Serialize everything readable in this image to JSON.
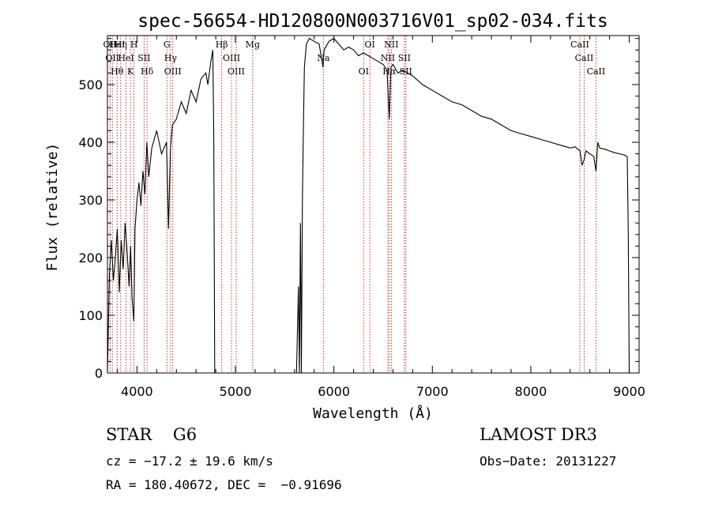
{
  "chart_data": {
    "type": "line",
    "title": "spec-56654-HD120800N003716V01_sp02-034.fits",
    "xlabel": "Wavelength (Å)",
    "ylabel": "Flux (relative)",
    "xlim": [
      3700,
      9100
    ],
    "ylim": [
      0,
      585
    ],
    "xticks": [
      4000,
      5000,
      6000,
      7000,
      8000,
      9000
    ],
    "yticks": [
      0,
      100,
      200,
      300,
      400,
      500
    ],
    "grid": false,
    "series": [
      {
        "x": [
          3700,
          3720,
          3740,
          3760,
          3780,
          3800,
          3820,
          3840,
          3860,
          3880,
          3900,
          3920,
          3935,
          3950,
          3968,
          3980,
          4000,
          4020,
          4040,
          4060,
          4080,
          4100,
          4120,
          4150,
          4200,
          4250,
          4300,
          4320,
          4340,
          4360,
          4400,
          4450,
          4500,
          4550,
          4600,
          4650,
          4700,
          4720,
          4750,
          4770,
          4780,
          4790,
          4800,
          5600,
          5620,
          5640,
          5650,
          5660,
          5670,
          5680,
          5690,
          5700,
          5720,
          5750,
          5800,
          5850,
          5890,
          5900,
          5950,
          6000,
          6050,
          6100,
          6150,
          6200,
          6250,
          6300,
          6350,
          6400,
          6450,
          6500,
          6540,
          6563,
          6580,
          6600,
          6650,
          6700,
          6750,
          6800,
          6900,
          7000,
          7100,
          7200,
          7300,
          7400,
          7500,
          7600,
          7700,
          7800,
          7900,
          8000,
          8100,
          8200,
          8300,
          8400,
          8450,
          8500,
          8520,
          8542,
          8560,
          8600,
          8640,
          8662,
          8680,
          8700,
          8750,
          8800,
          8850,
          8900,
          8950,
          8980,
          8990,
          9000
        ],
        "y": [
          0,
          170,
          230,
          160,
          200,
          250,
          140,
          230,
          180,
          260,
          210,
          150,
          220,
          130,
          90,
          250,
          300,
          330,
          290,
          350,
          310,
          400,
          340,
          390,
          420,
          380,
          400,
          250,
          390,
          430,
          440,
          470,
          450,
          490,
          470,
          510,
          520,
          500,
          540,
          560,
          410,
          0,
          0,
          0,
          0,
          150,
          0,
          260,
          0,
          300,
          420,
          530,
          570,
          580,
          575,
          570,
          530,
          560,
          575,
          580,
          570,
          560,
          565,
          560,
          550,
          555,
          550,
          545,
          540,
          535,
          525,
          440,
          530,
          535,
          520,
          525,
          520,
          515,
          500,
          490,
          480,
          470,
          465,
          455,
          445,
          440,
          430,
          420,
          415,
          410,
          405,
          400,
          395,
          390,
          392,
          385,
          360,
          370,
          385,
          380,
          375,
          350,
          400,
          390,
          388,
          385,
          382,
          380,
          378,
          375,
          240,
          0
        ]
      }
    ],
    "lines": [
      {
        "wl": 3727,
        "labels": [
          "OII"
        ]
      },
      {
        "wl": 3750,
        "labels": [
          "OII"
        ]
      },
      {
        "wl": 3798,
        "labels": [
          "Hθ",
          "HeI"
        ]
      },
      {
        "wl": 3835,
        "labels": [
          "Hη"
        ]
      },
      {
        "wl": 3889,
        "labels": [
          "HeI"
        ]
      },
      {
        "wl": 3934,
        "labels": [
          "K"
        ]
      },
      {
        "wl": 3970,
        "labels": [
          "H"
        ]
      },
      {
        "wl": 4072,
        "labels": [
          "SII"
        ]
      },
      {
        "wl": 4102,
        "labels": [
          "Hδ"
        ]
      },
      {
        "wl": 4304,
        "labels": [
          "G"
        ]
      },
      {
        "wl": 4341,
        "labels": [
          "Hγ"
        ]
      },
      {
        "wl": 4364,
        "labels": [
          "OIII"
        ]
      },
      {
        "wl": 4861,
        "labels": [
          "Hβ"
        ]
      },
      {
        "wl": 4960,
        "labels": [
          "OIII"
        ]
      },
      {
        "wl": 5008,
        "labels": [
          "OIII"
        ]
      },
      {
        "wl": 5175,
        "labels": [
          "Mg"
        ]
      },
      {
        "wl": 5893,
        "labels": [
          "Na"
        ]
      },
      {
        "wl": 6302,
        "labels": [
          "OI"
        ]
      },
      {
        "wl": 6365,
        "labels": [
          "OI"
        ]
      },
      {
        "wl": 6548,
        "labels": [
          "NII"
        ]
      },
      {
        "wl": 6563,
        "labels": [
          "Hα"
        ]
      },
      {
        "wl": 6583,
        "labels": [
          "NII"
        ]
      },
      {
        "wl": 6716,
        "labels": [
          "SII"
        ]
      },
      {
        "wl": 6731,
        "labels": [
          "SII"
        ]
      },
      {
        "wl": 8498,
        "labels": [
          "CaII"
        ]
      },
      {
        "wl": 8542,
        "labels": [
          "CaII"
        ]
      },
      {
        "wl": 8662,
        "labels": [
          "CaII"
        ]
      }
    ]
  },
  "info": {
    "star_type": "STAR    G6",
    "survey": "LAMOST DR3",
    "cz": "cz = −17.2 ± 19.6 km/s",
    "obs_date": "Obs−Date: 20131227",
    "radec": "RA = 180.40672, DEC =  −0.91696"
  },
  "colors": {
    "axis": "#000000",
    "spectrum": "#000000",
    "line_marker": "#c00000"
  }
}
